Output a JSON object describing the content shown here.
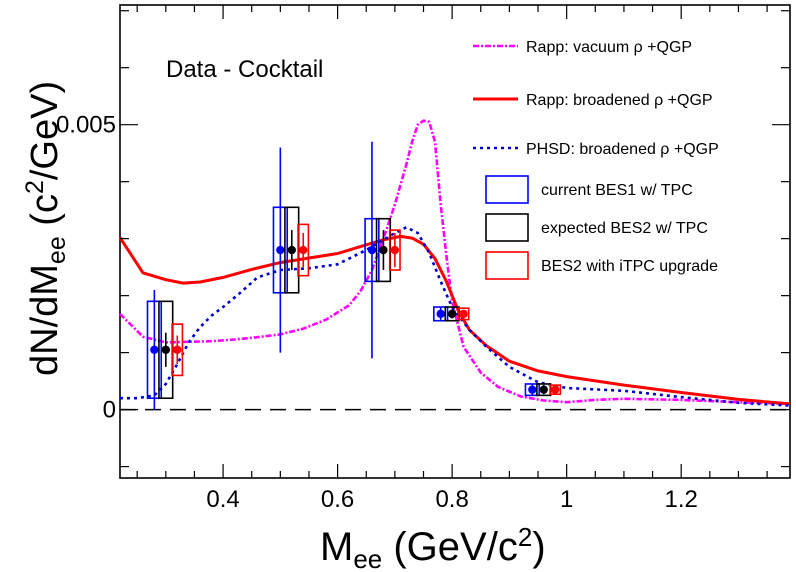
{
  "chart_data": {
    "type": "line",
    "annotation": "Data - Cocktail",
    "xlabel": {
      "main": "M",
      "sub": "ee",
      "units_pre": " (GeV/c",
      "units_sup": "2",
      "units_post": ")"
    },
    "ylabel": {
      "main": "dN/dM",
      "sub": "ee",
      "units_pre": " (c",
      "units_sup": "2",
      "units_post": "/GeV)"
    },
    "xlim": [
      0.22,
      1.39
    ],
    "ylim": [
      -0.0012,
      0.0071
    ],
    "x_ticks": [
      {
        "value": 0.4,
        "label": "0.4"
      },
      {
        "value": 0.6,
        "label": "0.6"
      },
      {
        "value": 0.8,
        "label": "0.8"
      },
      {
        "value": 1.0,
        "label": "1"
      },
      {
        "value": 1.2,
        "label": "1.2"
      }
    ],
    "y_ticks": [
      {
        "value": 0.0,
        "label": "0"
      },
      {
        "value": 0.005,
        "label": "0.005"
      }
    ],
    "reference_line": {
      "y": 0.0,
      "style": "dashed",
      "color": "#000000"
    },
    "series": [
      {
        "name": "Rapp: vacuum ρ +QGP",
        "color": "#ff00ff",
        "dash": "dashdot",
        "x": [
          0.22,
          0.26,
          0.3,
          0.34,
          0.38,
          0.42,
          0.46,
          0.5,
          0.54,
          0.58,
          0.62,
          0.64,
          0.66,
          0.68,
          0.7,
          0.72,
          0.73,
          0.74,
          0.75,
          0.76,
          0.77,
          0.78,
          0.79,
          0.8,
          0.82,
          0.85,
          0.88,
          0.92,
          0.96,
          1.0,
          1.05,
          1.1,
          1.2,
          1.3,
          1.39
        ],
        "y": [
          0.00168,
          0.00128,
          0.00118,
          0.00119,
          0.0012,
          0.00123,
          0.00127,
          0.00132,
          0.00142,
          0.00158,
          0.00183,
          0.00208,
          0.00245,
          0.003,
          0.0036,
          0.0043,
          0.0047,
          0.005,
          0.00507,
          0.00505,
          0.0047,
          0.0036,
          0.0027,
          0.0019,
          0.0011,
          0.00065,
          0.0004,
          0.00023,
          0.00016,
          0.00013,
          0.00017,
          0.00019,
          0.00017,
          0.00013,
          0.0001
        ]
      },
      {
        "name": "Rapp: broadened ρ +QGP",
        "color": "#ff0000",
        "dash": "solid",
        "x": [
          0.22,
          0.26,
          0.3,
          0.33,
          0.36,
          0.4,
          0.45,
          0.5,
          0.55,
          0.6,
          0.64,
          0.68,
          0.71,
          0.73,
          0.75,
          0.77,
          0.79,
          0.81,
          0.83,
          0.86,
          0.9,
          0.95,
          1.0,
          1.1,
          1.2,
          1.3,
          1.39
        ],
        "y": [
          0.00302,
          0.0024,
          0.00228,
          0.00222,
          0.00224,
          0.00232,
          0.00246,
          0.00258,
          0.00266,
          0.00274,
          0.00286,
          0.00298,
          0.00304,
          0.00301,
          0.0029,
          0.00265,
          0.00225,
          0.00175,
          0.0014,
          0.00112,
          0.00085,
          0.00068,
          0.00058,
          0.00043,
          0.0003,
          0.00018,
          0.0001
        ]
      },
      {
        "name": "PHSD: broadened ρ +QGP",
        "color": "#0000cc",
        "dash": "dotted",
        "x": [
          0.22,
          0.25,
          0.28,
          0.3,
          0.32,
          0.34,
          0.36,
          0.38,
          0.4,
          0.43,
          0.46,
          0.5,
          0.55,
          0.6,
          0.65,
          0.7,
          0.72,
          0.74,
          0.76,
          0.78,
          0.8,
          0.83,
          0.86,
          0.9,
          0.95,
          1.0,
          1.1,
          1.2,
          1.3,
          1.39
        ],
        "y": [
          0.0002,
          0.0002,
          0.00025,
          0.00045,
          0.0008,
          0.00118,
          0.00145,
          0.00165,
          0.0018,
          0.00205,
          0.00232,
          0.00245,
          0.00248,
          0.00255,
          0.0028,
          0.0031,
          0.0032,
          0.0031,
          0.00275,
          0.00225,
          0.0018,
          0.0014,
          0.0011,
          0.00075,
          0.00048,
          0.00038,
          0.00033,
          0.00022,
          0.00012,
          7e-05
        ]
      }
    ],
    "measurements": [
      {
        "name": "current BES1 w/ TPC",
        "color": "#0000ff",
        "x": [
          0.28,
          0.5,
          0.66,
          0.78,
          0.94
        ],
        "y": [
          0.00105,
          0.0028,
          0.0028,
          0.00168,
          0.00035
        ],
        "stat_err": [
          0.00105,
          0.0018,
          0.0019,
          0.00012,
          0.0001
        ],
        "sys_err": [
          0.00085,
          0.00075,
          0.00055,
          0.00012,
          0.0001
        ],
        "box_halfwidth": 0.012
      },
      {
        "name": "expected BES2 w/ TPC",
        "color": "#000000",
        "x": [
          0.3,
          0.52,
          0.68,
          0.8,
          0.96
        ],
        "y": [
          0.00105,
          0.0028,
          0.0028,
          0.00168,
          0.00035
        ],
        "stat_err": [
          0.0003,
          0.00035,
          0.00035,
          8e-05,
          8e-05
        ],
        "sys_err": [
          0.00085,
          0.00075,
          0.00055,
          0.00012,
          0.0001
        ],
        "box_halfwidth": 0.012
      },
      {
        "name": "BES2 with iTPC upgrade",
        "color": "#ff0000",
        "x": [
          0.32,
          0.54,
          0.7,
          0.82,
          0.98
        ],
        "y": [
          0.00105,
          0.0028,
          0.0028,
          0.00168,
          0.00035
        ],
        "stat_err": [
          0.00025,
          0.0003,
          0.0003,
          6e-05,
          6e-05
        ],
        "sys_err": [
          0.00045,
          0.00045,
          0.00035,
          0.0001,
          8e-05
        ],
        "box_halfwidth": 0.009
      }
    ],
    "legend": {
      "position": "top-right",
      "entries": [
        {
          "label": "Rapp: vacuum ρ +QGP",
          "kind": "line",
          "ref": "Rapp: vacuum ρ +QGP"
        },
        {
          "label": "Rapp: broadened ρ +QGP",
          "kind": "line",
          "ref": "Rapp: broadened ρ +QGP"
        },
        {
          "label": "PHSD: broadened ρ +QGP",
          "kind": "line",
          "ref": "PHSD: broadened ρ +QGP"
        },
        {
          "label": "current BES1 w/ TPC",
          "kind": "box",
          "color": "#0000ff"
        },
        {
          "label": "expected BES2 w/ TPC",
          "kind": "box",
          "color": "#000000"
        },
        {
          "label": "BES2 with iTPC upgrade",
          "kind": "box",
          "color": "#ff0000"
        }
      ]
    },
    "grid": false
  }
}
